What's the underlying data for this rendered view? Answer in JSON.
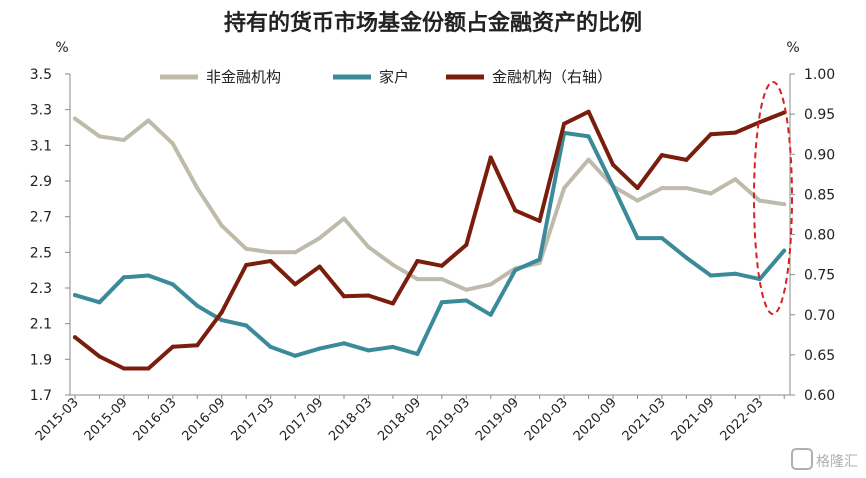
{
  "chart_data": {
    "type": "line",
    "title": "持有的货币市场基金份额占金融资产的比例",
    "ylabel_left": "%",
    "ylabel_right": "%",
    "ylim_left": [
      1.7,
      3.5
    ],
    "ylim_right": [
      0.6,
      1.0
    ],
    "yticks_left": [
      "1.7",
      "1.9",
      "2.1",
      "2.3",
      "2.5",
      "2.7",
      "2.9",
      "3.1",
      "3.3",
      "3.5"
    ],
    "yticks_right": [
      "0.60",
      "0.65",
      "0.70",
      "0.75",
      "0.80",
      "0.85",
      "0.90",
      "0.95",
      "1.00"
    ],
    "x": [
      "2015-03",
      "2015-06",
      "2015-09",
      "2015-12",
      "2016-03",
      "2016-06",
      "2016-09",
      "2016-12",
      "2017-03",
      "2017-06",
      "2017-09",
      "2017-12",
      "2018-03",
      "2018-06",
      "2018-09",
      "2018-12",
      "2019-03",
      "2019-06",
      "2019-09",
      "2019-12",
      "2020-03",
      "2020-06",
      "2020-09",
      "2020-12",
      "2021-03",
      "2021-06",
      "2021-09",
      "2021-12",
      "2022-03",
      "2022-06"
    ],
    "xtick_labels": [
      "2015-03",
      "2015-09",
      "2016-03",
      "2016-09",
      "2017-03",
      "2017-09",
      "2018-03",
      "2018-09",
      "2019-03",
      "2019-09",
      "2020-03",
      "2020-09",
      "2021-03",
      "2021-09",
      "2022-03"
    ],
    "series": [
      {
        "name": "非金融机构",
        "axis": "left",
        "color": "#bfbbaa",
        "values": [
          3.25,
          3.15,
          3.13,
          3.24,
          3.11,
          2.86,
          2.65,
          2.52,
          2.5,
          2.5,
          2.58,
          2.69,
          2.53,
          2.43,
          2.35,
          2.35,
          2.29,
          2.32,
          2.41,
          2.44,
          2.86,
          3.02,
          2.87,
          2.79,
          2.86,
          2.86,
          2.83,
          2.91,
          2.79,
          2.77
        ]
      },
      {
        "name": "家户",
        "axis": "left",
        "color": "#3a8a9a",
        "values": [
          2.26,
          2.22,
          2.36,
          2.37,
          2.32,
          2.2,
          2.12,
          2.09,
          1.97,
          1.92,
          1.96,
          1.99,
          1.95,
          1.97,
          1.93,
          2.22,
          2.23,
          2.15,
          2.4,
          2.46,
          3.17,
          3.15,
          2.87,
          2.58,
          2.58,
          2.47,
          2.37,
          2.38,
          2.35,
          2.51
        ]
      },
      {
        "name": "金融机构（右轴）",
        "axis": "right",
        "color": "#7a1d0d",
        "values": [
          0.672,
          0.648,
          0.633,
          0.633,
          0.66,
          0.662,
          0.703,
          0.762,
          0.767,
          0.738,
          0.76,
          0.723,
          0.724,
          0.714,
          0.767,
          0.761,
          0.787,
          0.896,
          0.83,
          0.817,
          0.938,
          0.953,
          0.887,
          0.858,
          0.899,
          0.893,
          0.925,
          0.927,
          0.94,
          0.952
        ]
      }
    ],
    "legend_position": "top",
    "grid": false,
    "annotation": "dashed red ellipse highlighting the latest observations"
  },
  "watermark": "格隆汇"
}
